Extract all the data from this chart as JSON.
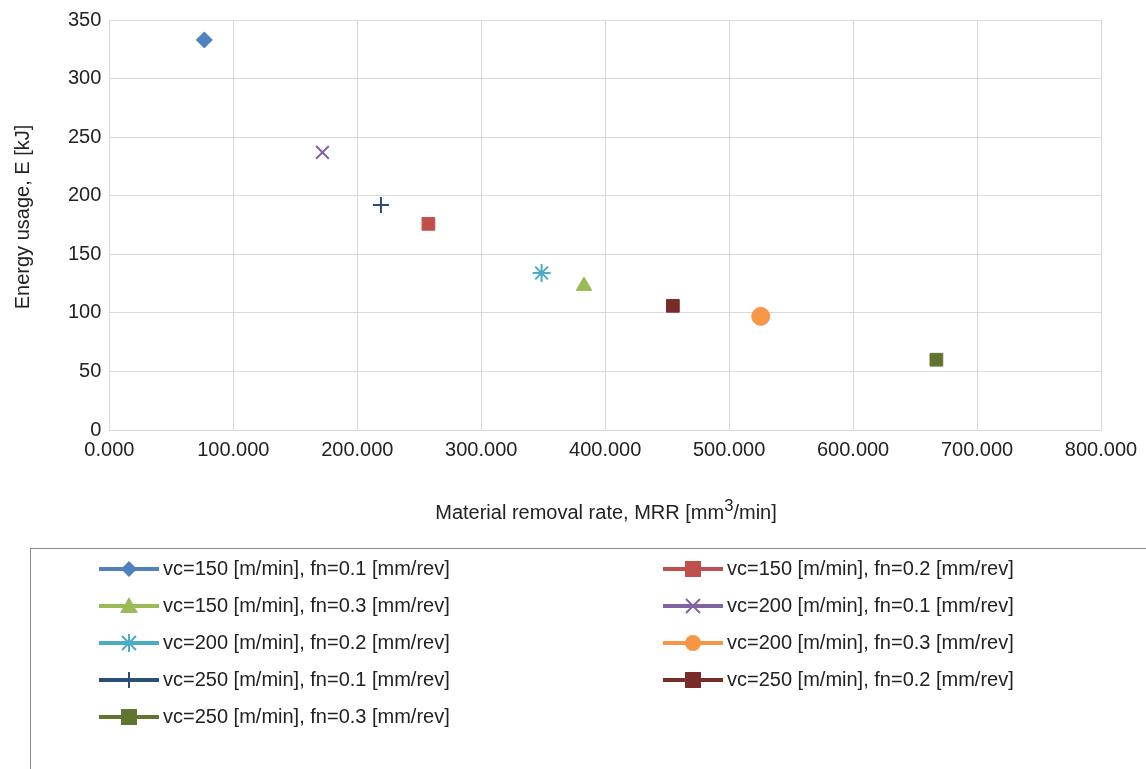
{
  "chart_data": {
    "type": "scatter",
    "xlabel": "Material removal rate, MRR [mm$^{3}$/min]",
    "ylabel": "Energy usage, E [kJ]",
    "xlim": [
      0,
      800
    ],
    "xticks": [
      {
        "value": 0,
        "label": "0.000"
      },
      {
        "value": 100,
        "label": "100.000"
      },
      {
        "value": 200,
        "label": "200.000"
      },
      {
        "value": 300,
        "label": "300.000"
      },
      {
        "value": 400,
        "label": "400.000"
      },
      {
        "value": 500,
        "label": "500.000"
      },
      {
        "value": 600,
        "label": "600.000"
      },
      {
        "value": 700,
        "label": "700.000"
      },
      {
        "value": 800,
        "label": "800.000"
      }
    ],
    "ylim": [
      0,
      350
    ],
    "yticks": [
      0,
      50,
      100,
      150,
      200,
      250,
      300,
      350
    ],
    "grid": true,
    "legend": "bottom",
    "series": [
      {
        "name": "vc=150 [m/min], fn=0.1 [mm/rev]",
        "color": "#4f81bd",
        "marker": "diamond",
        "x": [
          76.6
        ],
        "values": [
          333
        ]
      },
      {
        "name": "vc=150 [m/min], fn=0.2 [mm/rev]",
        "color": "#c0504d",
        "marker": "square",
        "x": [
          257.4
        ],
        "values": [
          176
        ]
      },
      {
        "name": "vc=150 [m/min], fn=0.3 [mm/rev]",
        "color": "#9bbb59",
        "marker": "triangle",
        "x": [
          382.9
        ],
        "values": [
          123
        ]
      },
      {
        "name": "vc=200 [m/min], fn=0.1 [mm/rev]",
        "color": "#8064a2",
        "marker": "x",
        "x": [
          171.9
        ],
        "values": [
          237
        ]
      },
      {
        "name": "vc=200 [m/min], fn=0.2 [mm/rev]",
        "color": "#4bacc6",
        "marker": "cross",
        "x": [
          348.7
        ],
        "values": [
          134
        ]
      },
      {
        "name": "vc=200 [m/min], fn=0.3 [mm/rev]",
        "color": "#f79646",
        "marker": "circle",
        "x": [
          525.5
        ],
        "values": [
          97
        ]
      },
      {
        "name": "vc=250 [m/min], fn=0.1 [mm/rev]",
        "color": "#2c4d75",
        "marker": "plus",
        "x": [
          219.1
        ],
        "values": [
          192
        ]
      },
      {
        "name": "vc=250 [m/min], fn=0.2 [mm/rev]",
        "color": "#772c2a",
        "marker": "square",
        "x": [
          454.6
        ],
        "values": [
          106
        ]
      },
      {
        "name": "vc=250 [m/min], fn=0.3 [mm/rev]",
        "color": "#5f7530",
        "marker": "square",
        "x": [
          667.2
        ],
        "values": [
          60
        ]
      }
    ]
  }
}
